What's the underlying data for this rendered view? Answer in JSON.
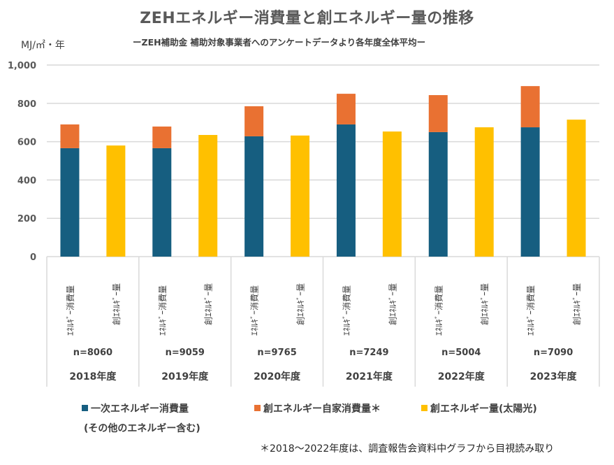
{
  "chart_data": {
    "type": "bar",
    "title": "ZEHエネルギー消費量と創エネルギー量の推移",
    "subtitle": "ーZEH補助金 補助対象事業者へのアンケートデータより各年度全体平均ー",
    "ylabel": "MJ/㎡・年",
    "xlabel": "",
    "ylim": [
      0,
      1000
    ],
    "yticks": [
      0,
      200,
      400,
      600,
      800,
      1000
    ],
    "ytick_labels": [
      "0",
      "200",
      "400",
      "600",
      "800",
      "1,000"
    ],
    "grid": true,
    "categories": [
      "2018年度",
      "2019年度",
      "2020年度",
      "2021年度",
      "2022年度",
      "2023年度"
    ],
    "sample_sizes": [
      "n=8060",
      "n=9059",
      "n=9765",
      "n=7249",
      "n=5004",
      "n=7090"
    ],
    "sub_categories": [
      "ｴﾈﾙｷﾞｰ消費量",
      "創ｴﾈﾙｷﾞｰ量"
    ],
    "series": [
      {
        "name": "一次エネルギー消費量",
        "stack": "consumption",
        "color": "#165E80",
        "values": [
          566,
          566,
          628,
          690,
          650,
          675
        ]
      },
      {
        "name": "創エネルギー自家消費量＊",
        "stack": "consumption",
        "color": "#E97132",
        "values": [
          124,
          113,
          157,
          160,
          193,
          215
        ]
      },
      {
        "name": "創エネルギー量(太陽光)",
        "stack": "creation",
        "color": "#FFC000",
        "values": [
          580,
          635,
          632,
          653,
          675,
          715
        ]
      }
    ],
    "legend_position": "bottom"
  },
  "legend": {
    "item1": "一次エネルギー消費量",
    "item1_sub": "(その他のエネルギー含む)",
    "item2": "創エネルギー自家消費量＊",
    "item3": "創エネルギー量(太陽光)"
  },
  "footnote": "＊2018～2022年度は、調査報告会資料中グラフから目視読み取り"
}
